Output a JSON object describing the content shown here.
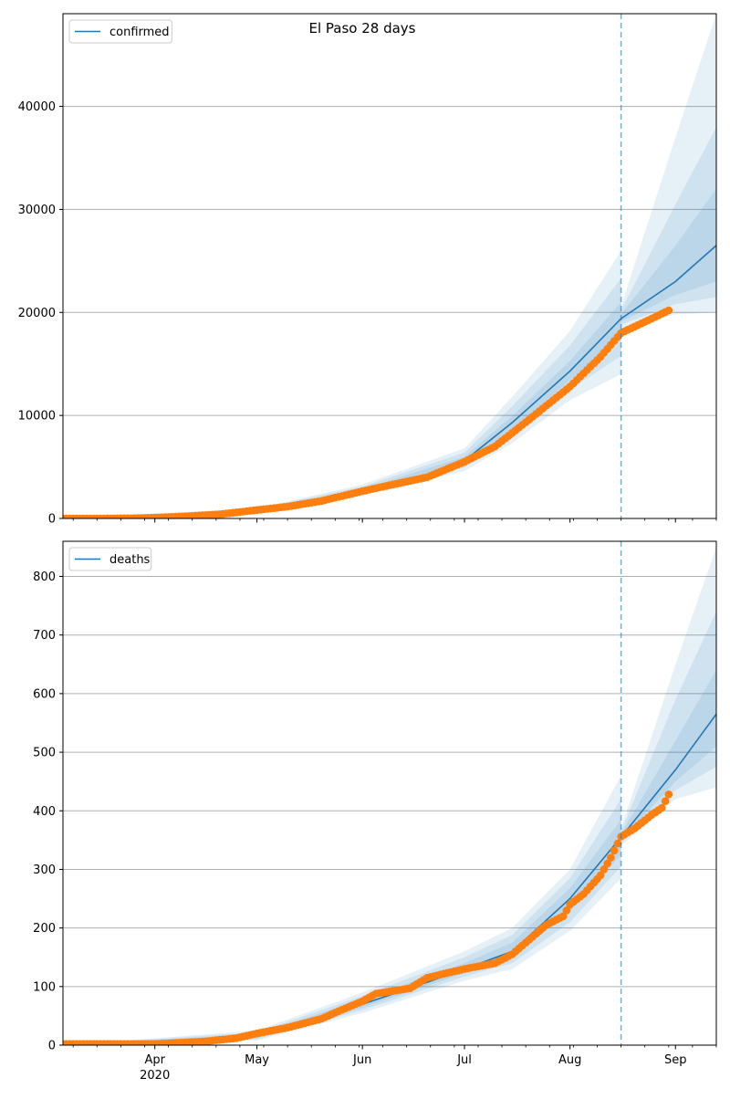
{
  "figure": {
    "suptitle": "El Paso 28 days",
    "colors": {
      "model_line": "#1f77b4",
      "observed": "#ff7f0e",
      "band": "#1f77b4",
      "grid": "#b0b0b0",
      "vline": "#1f77b4"
    }
  },
  "chart_data": [
    {
      "type": "line",
      "title": "",
      "xlabel": "",
      "ylabel": "",
      "legend": "upper left",
      "grid": "y-major",
      "xlim": [
        "2020-03-05",
        "2020-09-13"
      ],
      "ylim": [
        0,
        49000
      ],
      "yticks": [
        0,
        10000,
        20000,
        30000,
        40000
      ],
      "xticks": [],
      "forecast_start": "2020-08-16",
      "series": [
        {
          "name": "confirmed",
          "kind": "model",
          "points": [
            [
              "2020-03-05",
              0
            ],
            [
              "2020-03-20",
              30
            ],
            [
              "2020-04-01",
              120
            ],
            [
              "2020-04-15",
              400
            ],
            [
              "2020-05-01",
              850
            ],
            [
              "2020-05-15",
              1500
            ],
            [
              "2020-06-01",
              2700
            ],
            [
              "2020-06-15",
              3600
            ],
            [
              "2020-07-01",
              5600
            ],
            [
              "2020-07-15",
              9300
            ],
            [
              "2020-08-01",
              14300
            ],
            [
              "2020-08-16",
              19400
            ],
            [
              "2020-09-01",
              23000
            ],
            [
              "2020-09-13",
              26500
            ]
          ],
          "bands": [
            {
              "lower": [
                [
                  "2020-03-05",
                  0
                ],
                [
                  "2020-05-01",
                  700
                ],
                [
                  "2020-06-01",
                  2300
                ],
                [
                  "2020-07-01",
                  4600
                ],
                [
                  "2020-07-15",
                  7300
                ],
                [
                  "2020-08-01",
                  11500
                ],
                [
                  "2020-08-16",
                  14000
                ],
                [
                  "2020-08-16",
                  18500
                ],
                [
                  "2020-09-01",
                  19800
                ],
                [
                  "2020-09-13",
                  20000
                ]
              ],
              "upper": [
                [
                  "2020-03-05",
                  0
                ],
                [
                  "2020-05-01",
                  1000
                ],
                [
                  "2020-06-01",
                  3300
                ],
                [
                  "2020-07-01",
                  6800
                ],
                [
                  "2020-07-15",
                  11800
                ],
                [
                  "2020-08-01",
                  18200
                ],
                [
                  "2020-08-16",
                  26000
                ],
                [
                  "2020-08-16",
                  20600
                ],
                [
                  "2020-09-01",
                  37000
                ],
                [
                  "2020-09-13",
                  49000
                ]
              ]
            },
            {
              "lower": [
                [
                  "2020-03-05",
                  0
                ],
                [
                  "2020-05-01",
                  750
                ],
                [
                  "2020-06-01",
                  2450
                ],
                [
                  "2020-07-01",
                  4950
                ],
                [
                  "2020-07-15",
                  8000
                ],
                [
                  "2020-08-01",
                  12500
                ],
                [
                  "2020-08-16",
                  15800
                ],
                [
                  "2020-08-16",
                  18800
                ],
                [
                  "2020-09-01",
                  20800
                ],
                [
                  "2020-09-13",
                  21500
                ]
              ],
              "upper": [
                [
                  "2020-03-05",
                  0
                ],
                [
                  "2020-05-01",
                  950
                ],
                [
                  "2020-06-01",
                  3100
                ],
                [
                  "2020-07-01",
                  6400
                ],
                [
                  "2020-07-15",
                  10900
                ],
                [
                  "2020-08-01",
                  16800
                ],
                [
                  "2020-08-16",
                  23300
                ],
                [
                  "2020-08-16",
                  20200
                ],
                [
                  "2020-09-01",
                  30500
                ],
                [
                  "2020-09-13",
                  38000
                ]
              ]
            },
            {
              "lower": [
                [
                  "2020-03-05",
                  0
                ],
                [
                  "2020-05-01",
                  800
                ],
                [
                  "2020-06-01",
                  2580
                ],
                [
                  "2020-07-01",
                  5250
                ],
                [
                  "2020-07-15",
                  8650
                ],
                [
                  "2020-08-01",
                  13400
                ],
                [
                  "2020-08-16",
                  17700
                ],
                [
                  "2020-08-16",
                  19100
                ],
                [
                  "2020-09-01",
                  21700
                ],
                [
                  "2020-09-13",
                  23000
                ]
              ],
              "upper": [
                [
                  "2020-03-05",
                  0
                ],
                [
                  "2020-05-01",
                  900
                ],
                [
                  "2020-06-01",
                  2850
                ],
                [
                  "2020-07-01",
                  6000
                ],
                [
                  "2020-07-15",
                  9950
                ],
                [
                  "2020-08-01",
                  15300
                ],
                [
                  "2020-08-16",
                  21000
                ],
                [
                  "2020-08-16",
                  19800
                ],
                [
                  "2020-09-01",
                  26500
                ],
                [
                  "2020-09-13",
                  32000
                ]
              ]
            }
          ]
        },
        {
          "name": "",
          "kind": "observed",
          "points": [
            [
              "2020-03-05",
              0
            ],
            [
              "2020-03-15",
              0
            ],
            [
              "2020-03-25",
              20
            ],
            [
              "2020-04-01",
              80
            ],
            [
              "2020-04-10",
              200
            ],
            [
              "2020-04-20",
              400
            ],
            [
              "2020-05-01",
              820
            ],
            [
              "2020-05-10",
              1150
            ],
            [
              "2020-05-20",
              1700
            ],
            [
              "2020-06-01",
              2650
            ],
            [
              "2020-06-10",
              3300
            ],
            [
              "2020-06-20",
              4000
            ],
            [
              "2020-07-01",
              5500
            ],
            [
              "2020-07-10",
              7000
            ],
            [
              "2020-07-20",
              9600
            ],
            [
              "2020-08-01",
              12800
            ],
            [
              "2020-08-10",
              15700
            ],
            [
              "2020-08-16",
              18000
            ],
            [
              "2020-08-25",
              19400
            ],
            [
              "2020-08-30",
              20200
            ]
          ]
        }
      ]
    },
    {
      "type": "line",
      "title": "",
      "xlabel": "",
      "ylabel": "",
      "legend": "upper left",
      "grid": "y-major",
      "xlim": [
        "2020-03-05",
        "2020-09-13"
      ],
      "ylim": [
        0,
        860
      ],
      "yticks": [
        0,
        100,
        200,
        300,
        400,
        500,
        600,
        700,
        800
      ],
      "xticks": [
        {
          "date": "2020-04-01",
          "label": "Apr",
          "sublabel": "2020"
        },
        {
          "date": "2020-05-01",
          "label": "May",
          "sublabel": ""
        },
        {
          "date": "2020-06-01",
          "label": "Jun",
          "sublabel": ""
        },
        {
          "date": "2020-07-01",
          "label": "Jul",
          "sublabel": ""
        },
        {
          "date": "2020-08-01",
          "label": "Aug",
          "sublabel": ""
        },
        {
          "date": "2020-09-01",
          "label": "Sep",
          "sublabel": ""
        }
      ],
      "forecast_start": "2020-08-16",
      "series": [
        {
          "name": "deaths",
          "kind": "model",
          "points": [
            [
              "2020-03-05",
              0
            ],
            [
              "2020-04-01",
              0
            ],
            [
              "2020-04-15",
              4
            ],
            [
              "2020-05-01",
              15
            ],
            [
              "2020-05-15",
              35
            ],
            [
              "2020-06-01",
              70
            ],
            [
              "2020-06-15",
              97
            ],
            [
              "2020-07-01",
              130
            ],
            [
              "2020-07-15",
              160
            ],
            [
              "2020-08-01",
              250
            ],
            [
              "2020-08-16",
              355
            ],
            [
              "2020-09-01",
              470
            ],
            [
              "2020-09-13",
              565
            ]
          ],
          "bands": [
            {
              "lower": [
                [
                  "2020-03-05",
                  0
                ],
                [
                  "2020-05-01",
                  8
                ],
                [
                  "2020-06-01",
                  55
                ],
                [
                  "2020-07-01",
                  110
                ],
                [
                  "2020-07-15",
                  130
                ],
                [
                  "2020-08-01",
                  195
                ],
                [
                  "2020-08-16",
                  285
                ],
                [
                  "2020-08-16",
                  340
                ],
                [
                  "2020-09-01",
                  420
                ],
                [
                  "2020-09-13",
                  440
                ]
              ],
              "upper": [
                [
                  "2020-03-05",
                  0
                ],
                [
                  "2020-05-01",
                  25
                ],
                [
                  "2020-06-01",
                  90
                ],
                [
                  "2020-07-01",
                  160
                ],
                [
                  "2020-07-15",
                  200
                ],
                [
                  "2020-08-01",
                  300
                ],
                [
                  "2020-08-16",
                  460
                ],
                [
                  "2020-08-16",
                  370
                ],
                [
                  "2020-09-01",
                  650
                ],
                [
                  "2020-09-13",
                  850
                ]
              ]
            },
            {
              "lower": [
                [
                  "2020-03-05",
                  0
                ],
                [
                  "2020-05-01",
                  10
                ],
                [
                  "2020-06-01",
                  60
                ],
                [
                  "2020-07-01",
                  117
                ],
                [
                  "2020-07-15",
                  140
                ],
                [
                  "2020-08-01",
                  210
                ],
                [
                  "2020-08-16",
                  305
                ],
                [
                  "2020-08-16",
                  345
                ],
                [
                  "2020-09-01",
                  435
                ],
                [
                  "2020-09-13",
                  475
                ]
              ],
              "upper": [
                [
                  "2020-03-05",
                  0
                ],
                [
                  "2020-05-01",
                  22
                ],
                [
                  "2020-06-01",
                  84
                ],
                [
                  "2020-07-01",
                  150
                ],
                [
                  "2020-07-15",
                  188
                ],
                [
                  "2020-08-01",
                  285
                ],
                [
                  "2020-08-16",
                  420
                ],
                [
                  "2020-08-16",
                  365
                ],
                [
                  "2020-09-01",
                  590
                ],
                [
                  "2020-09-13",
                  740
                ]
              ]
            },
            {
              "lower": [
                [
                  "2020-03-05",
                  0
                ],
                [
                  "2020-05-01",
                  12
                ],
                [
                  "2020-06-01",
                  64
                ],
                [
                  "2020-07-01",
                  123
                ],
                [
                  "2020-07-15",
                  150
                ],
                [
                  "2020-08-01",
                  228
                ],
                [
                  "2020-08-16",
                  325
                ],
                [
                  "2020-08-16",
                  350
                ],
                [
                  "2020-09-01",
                  450
                ],
                [
                  "2020-09-13",
                  510
                ]
              ],
              "upper": [
                [
                  "2020-03-05",
                  0
                ],
                [
                  "2020-05-01",
                  19
                ],
                [
                  "2020-06-01",
                  78
                ],
                [
                  "2020-07-01",
                  140
                ],
                [
                  "2020-07-15",
                  175
                ],
                [
                  "2020-08-01",
                  268
                ],
                [
                  "2020-08-16",
                  385
                ],
                [
                  "2020-08-16",
                  360
                ],
                [
                  "2020-09-01",
                  520
                ],
                [
                  "2020-09-13",
                  640
                ]
              ]
            }
          ]
        },
        {
          "name": "",
          "kind": "observed",
          "points": [
            [
              "2020-03-05",
              2
            ],
            [
              "2020-04-01",
              2
            ],
            [
              "2020-04-15",
              6
            ],
            [
              "2020-04-25",
              12
            ],
            [
              "2020-05-01",
              20
            ],
            [
              "2020-05-10",
              30
            ],
            [
              "2020-05-20",
              45
            ],
            [
              "2020-05-25",
              58
            ],
            [
              "2020-06-01",
              75
            ],
            [
              "2020-06-05",
              88
            ],
            [
              "2020-06-15",
              97
            ],
            [
              "2020-06-20",
              115
            ],
            [
              "2020-06-25",
              122
            ],
            [
              "2020-07-01",
              130
            ],
            [
              "2020-07-10",
              140
            ],
            [
              "2020-07-15",
              155
            ],
            [
              "2020-07-20",
              180
            ],
            [
              "2020-07-25",
              205
            ],
            [
              "2020-07-30",
              220
            ],
            [
              "2020-08-01",
              240
            ],
            [
              "2020-08-05",
              258
            ],
            [
              "2020-08-10",
              290
            ],
            [
              "2020-08-13",
              320
            ],
            [
              "2020-08-16",
              356
            ],
            [
              "2020-08-20",
              370
            ],
            [
              "2020-08-25",
              393
            ],
            [
              "2020-08-28",
              405
            ],
            [
              "2020-08-30",
              428
            ]
          ]
        }
      ]
    }
  ]
}
